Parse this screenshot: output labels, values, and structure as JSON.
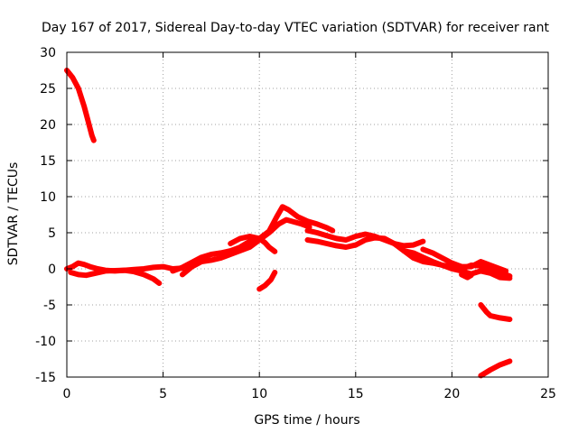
{
  "chart_data": {
    "type": "line",
    "title": "Day 167 of 2017, Sidereal Day-to-day VTEC variation (SDTVAR) for receiver rant",
    "xlabel": "GPS time / hours",
    "ylabel": "SDTVAR / TECUs",
    "xlim": [
      0,
      25
    ],
    "ylim": [
      -15,
      30
    ],
    "xticks": [
      0,
      5,
      10,
      15,
      20,
      25
    ],
    "yticks": [
      -15,
      -10,
      -5,
      0,
      5,
      10,
      15,
      20,
      25,
      30
    ],
    "grid": true,
    "legend": "none",
    "color": "#ff0000",
    "series": [
      {
        "name": "arc-1",
        "points": [
          [
            0.0,
            27.5
          ],
          [
            0.3,
            26.5
          ],
          [
            0.6,
            25.0
          ],
          [
            0.9,
            22.5
          ],
          [
            1.1,
            20.5
          ],
          [
            1.3,
            18.5
          ],
          [
            1.4,
            17.8
          ]
        ]
      },
      {
        "name": "arc-2",
        "points": [
          [
            0.0,
            0.0
          ],
          [
            0.3,
            0.3
          ],
          [
            0.6,
            0.8
          ],
          [
            0.9,
            0.6
          ],
          [
            1.2,
            0.3
          ],
          [
            1.6,
            0.0
          ],
          [
            2.0,
            -0.2
          ],
          [
            2.5,
            -0.3
          ],
          [
            3.0,
            -0.2
          ],
          [
            3.5,
            -0.1
          ],
          [
            4.0,
            0.0
          ],
          [
            4.5,
            0.2
          ],
          [
            5.0,
            0.3
          ],
          [
            5.5,
            0.0
          ],
          [
            6.0,
            0.1
          ]
        ]
      },
      {
        "name": "arc-3",
        "points": [
          [
            0.2,
            -0.5
          ],
          [
            0.6,
            -0.8
          ],
          [
            1.0,
            -0.9
          ],
          [
            1.5,
            -0.6
          ],
          [
            2.0,
            -0.3
          ],
          [
            3.0,
            -0.2
          ],
          [
            3.5,
            -0.4
          ],
          [
            4.0,
            -0.8
          ],
          [
            4.5,
            -1.4
          ],
          [
            4.8,
            -2.0
          ]
        ]
      },
      {
        "name": "arc-4",
        "points": [
          [
            6.0,
            -0.8
          ],
          [
            6.5,
            0.3
          ],
          [
            7.0,
            1.0
          ],
          [
            7.5,
            1.2
          ],
          [
            8.0,
            1.5
          ],
          [
            8.5,
            2.0
          ],
          [
            9.0,
            2.5
          ],
          [
            9.5,
            3.0
          ],
          [
            10.0,
            4.0
          ],
          [
            10.5,
            5.0
          ],
          [
            11.0,
            6.2
          ],
          [
            11.4,
            6.8
          ],
          [
            11.8,
            6.5
          ],
          [
            12.2,
            6.2
          ],
          [
            12.6,
            5.8
          ]
        ]
      },
      {
        "name": "arc-5",
        "points": [
          [
            5.5,
            -0.3
          ],
          [
            6.0,
            0.2
          ],
          [
            6.5,
            0.9
          ],
          [
            7.0,
            1.6
          ],
          [
            7.5,
            2.0
          ],
          [
            8.0,
            2.2
          ],
          [
            8.5,
            2.5
          ],
          [
            9.0,
            3.0
          ],
          [
            9.5,
            3.8
          ],
          [
            10.0,
            4.2
          ],
          [
            10.5,
            5.2
          ],
          [
            10.9,
            7.2
          ],
          [
            11.2,
            8.6
          ],
          [
            11.5,
            8.2
          ],
          [
            12.0,
            7.2
          ],
          [
            12.5,
            6.6
          ],
          [
            13.0,
            6.2
          ],
          [
            13.5,
            5.7
          ],
          [
            13.8,
            5.3
          ]
        ]
      },
      {
        "name": "arc-6",
        "points": [
          [
            8.5,
            3.5
          ],
          [
            9.0,
            4.2
          ],
          [
            9.5,
            4.5
          ],
          [
            10.0,
            4.2
          ],
          [
            10.3,
            3.6
          ],
          [
            10.5,
            3.0
          ],
          [
            10.8,
            2.4
          ]
        ]
      },
      {
        "name": "arc-7",
        "points": [
          [
            10.0,
            -2.8
          ],
          [
            10.3,
            -2.3
          ],
          [
            10.6,
            -1.5
          ],
          [
            10.8,
            -0.5
          ]
        ]
      },
      {
        "name": "arc-8",
        "points": [
          [
            12.5,
            4.0
          ],
          [
            13.0,
            3.8
          ],
          [
            13.5,
            3.5
          ],
          [
            14.0,
            3.2
          ],
          [
            14.5,
            3.0
          ],
          [
            15.0,
            3.3
          ],
          [
            15.5,
            4.0
          ],
          [
            16.0,
            4.3
          ],
          [
            16.5,
            4.2
          ],
          [
            17.0,
            3.5
          ],
          [
            17.5,
            2.5
          ],
          [
            18.0,
            1.5
          ],
          [
            18.5,
            1.0
          ],
          [
            19.0,
            0.8
          ],
          [
            19.5,
            0.5
          ],
          [
            20.0,
            0.3
          ],
          [
            20.5,
            0.0
          ],
          [
            21.0,
            0.5
          ],
          [
            21.5,
            0.4
          ],
          [
            22.0,
            0.0
          ],
          [
            22.5,
            -0.5
          ],
          [
            23.0,
            -1.0
          ]
        ]
      },
      {
        "name": "arc-9",
        "points": [
          [
            12.5,
            5.3
          ],
          [
            13.0,
            5.0
          ],
          [
            13.5,
            4.6
          ],
          [
            14.0,
            4.2
          ],
          [
            14.5,
            4.0
          ],
          [
            15.0,
            4.5
          ],
          [
            15.5,
            4.8
          ],
          [
            16.0,
            4.5
          ],
          [
            16.5,
            4.0
          ],
          [
            17.0,
            3.5
          ],
          [
            17.5,
            3.2
          ],
          [
            18.0,
            3.3
          ],
          [
            18.5,
            3.8
          ]
        ]
      },
      {
        "name": "arc-10",
        "points": [
          [
            17.5,
            2.5
          ],
          [
            18.0,
            2.2
          ],
          [
            18.5,
            1.6
          ],
          [
            19.0,
            1.0
          ],
          [
            19.5,
            0.5
          ],
          [
            20.0,
            0.0
          ],
          [
            20.5,
            -0.3
          ],
          [
            21.0,
            -0.7
          ],
          [
            21.5,
            -0.3
          ],
          [
            22.0,
            -0.6
          ],
          [
            22.5,
            -1.2
          ],
          [
            23.0,
            -1.3
          ]
        ]
      },
      {
        "name": "arc-11",
        "points": [
          [
            18.5,
            2.7
          ],
          [
            19.0,
            2.2
          ],
          [
            19.5,
            1.5
          ],
          [
            20.0,
            0.8
          ],
          [
            20.5,
            0.3
          ],
          [
            21.0,
            0.3
          ],
          [
            21.5,
            1.0
          ],
          [
            22.0,
            0.5
          ],
          [
            22.5,
            0.0
          ],
          [
            22.8,
            -0.3
          ]
        ]
      },
      {
        "name": "arc-12",
        "points": [
          [
            20.5,
            -0.8
          ],
          [
            20.8,
            -1.2
          ],
          [
            21.0,
            -0.9
          ]
        ]
      },
      {
        "name": "arc-13",
        "points": [
          [
            21.5,
            -5.0
          ],
          [
            21.8,
            -6.0
          ],
          [
            22.0,
            -6.5
          ],
          [
            22.5,
            -6.8
          ],
          [
            23.0,
            -7.0
          ]
        ]
      },
      {
        "name": "arc-14",
        "points": [
          [
            21.5,
            -14.8
          ],
          [
            22.0,
            -14.0
          ],
          [
            22.5,
            -13.3
          ],
          [
            23.0,
            -12.8
          ]
        ]
      }
    ]
  }
}
